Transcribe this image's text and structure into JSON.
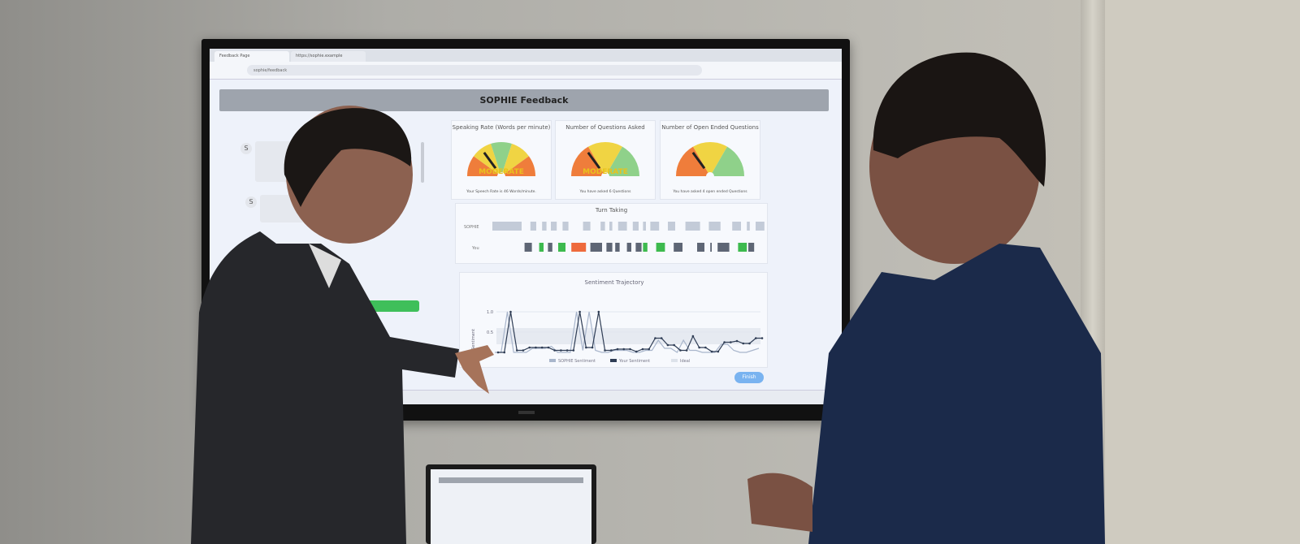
{
  "browser": {
    "tabs": [
      "Feedback Page",
      "https://sophie.example"
    ],
    "url": "sophie/feedback"
  },
  "header": {
    "title": "SOPHIE Feedback"
  },
  "chat": {
    "avatar_label": "S"
  },
  "gauges": [
    {
      "title": "Speaking Rate (Words per minute)",
      "label": "MODERATE",
      "note": "Your Speech Rate is 46 Words/minute.",
      "value": 0.3,
      "bands": [
        "#ef7d3b",
        "#f0d443",
        "#8fd18a",
        "#f0d443",
        "#ef7d3b"
      ]
    },
    {
      "title": "Number of Questions Asked",
      "label": "MODERATE",
      "note": "You have asked 6 Questions",
      "value": 0.3,
      "bands": [
        "#ef7d3b",
        "#f0d443",
        "#8fd18a"
      ]
    },
    {
      "title": "Number of Open Ended Questions",
      "label": "",
      "note": "You have asked 4 open ended Questions",
      "value": 0.3,
      "bands": [
        "#ef7d3b",
        "#f0d443",
        "#8fd18a"
      ]
    }
  ],
  "turn_taking": {
    "title": "Turn Taking",
    "rows": [
      "SOPHIE",
      "You"
    ],
    "colors": {
      "sophie": "#c3cbd8",
      "neutral": "#5e6675",
      "good": "#3dba4e",
      "bad": "#ee6a3c"
    },
    "sophie": [
      [
        0,
        10
      ],
      [
        13,
        15
      ],
      [
        17,
        18.5
      ],
      [
        20,
        22
      ],
      [
        24,
        26
      ],
      [
        31,
        33.5
      ],
      [
        37,
        38.5
      ],
      [
        40,
        41
      ],
      [
        43,
        46
      ],
      [
        48,
        50
      ],
      [
        51.5,
        52.5
      ],
      [
        54,
        57
      ],
      [
        60,
        62.5
      ],
      [
        66,
        71
      ],
      [
        74,
        78
      ],
      [
        82,
        85
      ],
      [
        87,
        88
      ],
      [
        90,
        93
      ]
    ],
    "you": [
      [
        11,
        13.5,
        "neutral"
      ],
      [
        16,
        17.5,
        "good"
      ],
      [
        19,
        20.5,
        "neutral"
      ],
      [
        22.5,
        25,
        "good"
      ],
      [
        27,
        32,
        "bad"
      ],
      [
        33.5,
        37.5,
        "neutral"
      ],
      [
        39,
        41,
        "neutral"
      ],
      [
        42,
        43.5,
        "neutral"
      ],
      [
        46,
        47.5,
        "neutral"
      ],
      [
        49,
        51,
        "neutral"
      ],
      [
        51.5,
        53,
        "good"
      ],
      [
        56,
        59,
        "good"
      ],
      [
        62,
        65,
        "neutral"
      ],
      [
        70,
        72.5,
        "neutral"
      ],
      [
        74.5,
        75,
        "neutral"
      ],
      [
        77,
        81,
        "neutral"
      ],
      [
        84,
        87,
        "good"
      ],
      [
        87.5,
        89.5,
        "neutral"
      ]
    ]
  },
  "chart_data": {
    "type": "line",
    "title": "Sentiment Trajectory",
    "xlabel": "",
    "ylabel": "Sentiment",
    "yticks": [
      "1.0",
      "0.5"
    ],
    "ylim": [
      0,
      1.1
    ],
    "grid": true,
    "legend": "bottom",
    "series": [
      {
        "name": "SOPHIE Sentiment",
        "color": "#a9b6cc",
        "values": [
          0,
          0,
          1,
          0,
          0,
          0,
          0.1,
          0.1,
          0.1,
          0.15,
          0,
          0,
          0,
          1,
          0.05,
          1,
          0.05,
          0,
          0,
          0.05,
          0.05,
          0.05,
          0,
          0,
          0.05,
          0.05,
          0.3,
          0.1,
          0.1,
          0,
          0.3,
          0.05,
          0.05,
          0,
          0,
          0,
          0.2,
          0.2,
          0.05,
          0,
          0,
          0.05,
          0.1
        ]
      },
      {
        "name": "Your Sentiment",
        "color": "#2f3d55",
        "values": [
          0,
          0,
          1,
          0.05,
          0.05,
          0.12,
          0.12,
          0.12,
          0.12,
          0.05,
          0.05,
          0.05,
          0.05,
          1,
          0.12,
          0.12,
          1,
          0.05,
          0.05,
          0.08,
          0.08,
          0.08,
          0.02,
          0.08,
          0.08,
          0.35,
          0.35,
          0.18,
          0.18,
          0.05,
          0.05,
          0.4,
          0.12,
          0.12,
          0.02,
          0.02,
          0.25,
          0.25,
          0.28,
          0.22,
          0.22,
          0.35,
          0.35
        ]
      },
      {
        "name": "Ideal",
        "color": "#dde2ea"
      }
    ]
  },
  "buttons": {
    "finish": "Finish"
  }
}
